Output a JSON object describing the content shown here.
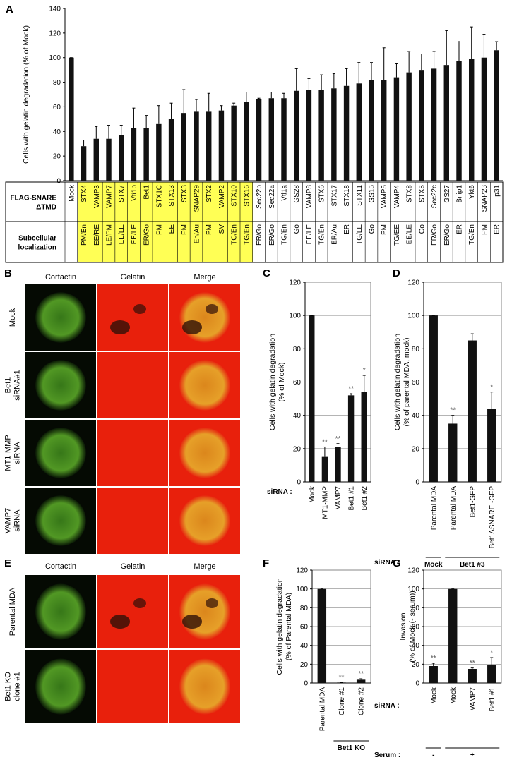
{
  "panel_labels": [
    "A",
    "B",
    "C",
    "D",
    "E",
    "F",
    "G"
  ],
  "micrographs": [
    {
      "channels": [
        "Cortactin",
        "Gelatin",
        "Merge"
      ],
      "rows": [
        [
          "Mock"
        ],
        [
          "Bet1",
          "siRNA#1"
        ],
        [
          "MT1-MMP",
          "siRNA"
        ],
        [
          "VAMP7",
          "siRNA"
        ]
      ]
    },
    {
      "channels": [
        "Cortactin",
        "Gelatin",
        "Merge"
      ],
      "rows": [
        [
          "Parental MDA"
        ],
        [
          "Bet1 KO",
          "clone #1"
        ]
      ]
    }
  ],
  "chart_data": [
    {
      "type": "bar",
      "ylabel": [
        "Cells with gelatin degradation (% of Mock)"
      ],
      "color": "#111111",
      "grid": false,
      "ylim": [
        0,
        140
      ],
      "yticks": [
        0,
        20,
        40,
        60,
        80,
        100,
        120,
        140
      ],
      "table_headers": [
        [
          "FLAG-SNARE",
          "ΔTMD"
        ],
        [
          "Subcellular",
          "localization"
        ]
      ],
      "categories": [
        "Mock",
        "STX4",
        "VAMP3",
        "VAMP7",
        "STX7",
        "Vti1b",
        "Bet1",
        "STX1C",
        "STX13",
        "STX3",
        "SNAP29",
        "STX2",
        "VAMP2",
        "STX10",
        "STX16",
        "Sec22b",
        "Sec22a",
        "Vti1a",
        "GS28",
        "VAMP8",
        "STX6",
        "STX17",
        "STX18",
        "STX11",
        "GS15",
        "VAMP5",
        "VAMP4",
        "STX8",
        "STX5",
        "Sec22c",
        "GS27",
        "Bnip1",
        "Ykt6",
        "SNAP23",
        "p31"
      ],
      "localization": [
        null,
        "PM/En",
        "EE/RE",
        "LE/PM",
        "EE/LE",
        "EE/LE",
        "ER/Go",
        "PM",
        "EE",
        "PM",
        "En/Au",
        "PM",
        "SV",
        "TG/En",
        "TG/En",
        "ER/Go",
        "ER/Go",
        "TG/En",
        "Go",
        "EE/LE",
        "TG/En",
        "ER/Au",
        "ER",
        "TG/LE",
        "Go",
        "PM",
        "TG/EE",
        "EE/LE",
        "Go",
        "ER/Go",
        "ER/Go",
        "ER",
        "TG/En",
        "PM",
        "ER"
      ],
      "values": [
        100,
        28,
        34,
        34,
        37,
        43,
        43,
        46,
        50,
        55,
        56,
        56,
        57,
        61,
        64,
        66,
        67,
        67,
        73,
        74,
        74,
        75,
        77,
        79,
        82,
        82,
        84,
        88,
        90,
        91,
        94,
        97,
        99,
        100,
        106
      ],
      "errors": [
        0,
        5,
        10,
        11,
        8,
        16,
        10,
        15,
        13,
        19,
        10,
        15,
        4,
        2,
        8,
        1,
        5,
        4,
        18,
        9,
        12,
        12,
        14,
        17,
        14,
        26,
        11,
        17,
        13,
        14,
        28,
        16,
        26,
        19,
        7
      ]
    },
    {
      "type": "bar",
      "ylabel": [
        "Cells with gelatin degradation",
        "(% of Mock)"
      ],
      "color": "#111111",
      "grid": true,
      "ylim": [
        0,
        120
      ],
      "yticks": [
        0,
        20,
        40,
        60,
        80,
        100,
        120
      ],
      "xlabel": "siRNA :",
      "categories": [
        "Mock",
        "MT1-MMP",
        "VAMP7",
        "Bet1 #1",
        "Bet1 #2"
      ],
      "values": [
        100,
        15,
        21,
        52,
        54
      ],
      "errors": [
        0,
        6,
        2,
        1,
        10
      ],
      "annotations": [
        null,
        "**",
        "**",
        "**",
        "*"
      ]
    },
    {
      "type": "bar",
      "ylabel": [
        "Cells with gelatin degradation",
        "(% of parental MDA, mock)"
      ],
      "color": "#111111",
      "grid": true,
      "ylim": [
        0,
        120
      ],
      "yticks": [
        0,
        20,
        40,
        60,
        80,
        100,
        120
      ],
      "xlabel": "siRNA :",
      "categories": [
        "Parental MDA",
        "Parental MDA",
        "Bet1-GFP",
        "Bet1ΔSNARE -GFP"
      ],
      "values": [
        100,
        35,
        85,
        44
      ],
      "errors": [
        0,
        5,
        4,
        10
      ],
      "annotations": [
        null,
        "**",
        null,
        "*"
      ],
      "groups": [
        "Mock",
        "Bet1 #3"
      ]
    },
    {
      "type": "bar",
      "ylabel": [
        "Cells with gelatin degradation",
        "(% of Parental MDA)"
      ],
      "color": "#111111",
      "grid": true,
      "ylim": [
        0,
        120
      ],
      "yticks": [
        0,
        20,
        40,
        60,
        80,
        100,
        120
      ],
      "categories": [
        "Parental MDA",
        "Clone #1",
        "Clone #2"
      ],
      "values": [
        100,
        0.5,
        3.5
      ],
      "errors": [
        0,
        0,
        1
      ],
      "annotations": [
        null,
        "**",
        "**"
      ],
      "groups": [
        "Bet1 KO"
      ]
    },
    {
      "type": "bar",
      "ylabel": [
        "Invasion",
        "(% of Mock (- serum))"
      ],
      "color": "#111111",
      "grid": true,
      "ylim": [
        0,
        120
      ],
      "yticks": [
        0,
        20,
        40,
        60,
        80,
        100,
        120
      ],
      "xlabel": "siRNA :",
      "categories": [
        "Mock",
        "Mock",
        "VAMP7",
        "Bet1 #1"
      ],
      "values": [
        18,
        100,
        15,
        19
      ],
      "errors": [
        3,
        0,
        1,
        8
      ],
      "annotations": [
        "**",
        null,
        "**",
        "*"
      ],
      "serum_label": "Serum :",
      "groups": [
        "-",
        "+"
      ]
    }
  ]
}
